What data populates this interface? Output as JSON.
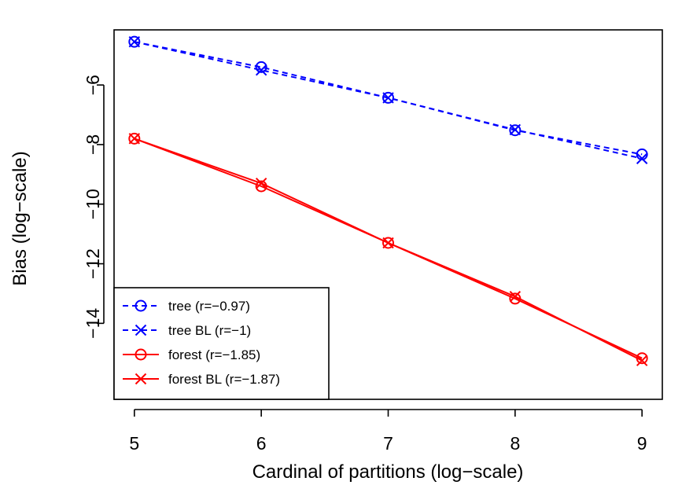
{
  "chart_data": {
    "type": "line",
    "title": "",
    "xlabel": "Cardinal of partitions (log−scale)",
    "ylabel": "Bias (log−scale)",
    "x": [
      5,
      6,
      7,
      8,
      9
    ],
    "xlim": [
      4.84,
      9.16
    ],
    "ylim": [
      -16.55,
      -4.15
    ],
    "xticks": [
      5,
      6,
      7,
      8,
      9
    ],
    "xtick_labels": [
      "5",
      "6",
      "7",
      "8",
      "9"
    ],
    "yticks": [
      -6,
      -8,
      -10,
      -12,
      -14
    ],
    "ytick_labels": [
      "−6",
      "−8",
      "−10",
      "−12",
      "−14"
    ],
    "grid": false,
    "legend_position": "bottom-left",
    "series": [
      {
        "name": "tree (r=−0.97)",
        "color": "#0000ff",
        "dash": "dashed",
        "marker": "circle",
        "values": [
          -4.55,
          -5.4,
          -6.43,
          -7.52,
          -8.33
        ]
      },
      {
        "name": "tree BL (r=−1)",
        "color": "#0000ff",
        "dash": "dashed",
        "marker": "cross",
        "values": [
          -4.55,
          -5.5,
          -6.43,
          -7.5,
          -8.47
        ]
      },
      {
        "name": "forest (r=−1.85)",
        "color": "#ff0000",
        "dash": "solid",
        "marker": "circle",
        "values": [
          -7.8,
          -9.4,
          -11.3,
          -13.17,
          -15.17
        ]
      },
      {
        "name": "forest BL (r=−1.87)",
        "color": "#ff0000",
        "dash": "solid",
        "marker": "cross",
        "values": [
          -7.8,
          -9.3,
          -11.3,
          -13.1,
          -15.25
        ]
      }
    ]
  }
}
